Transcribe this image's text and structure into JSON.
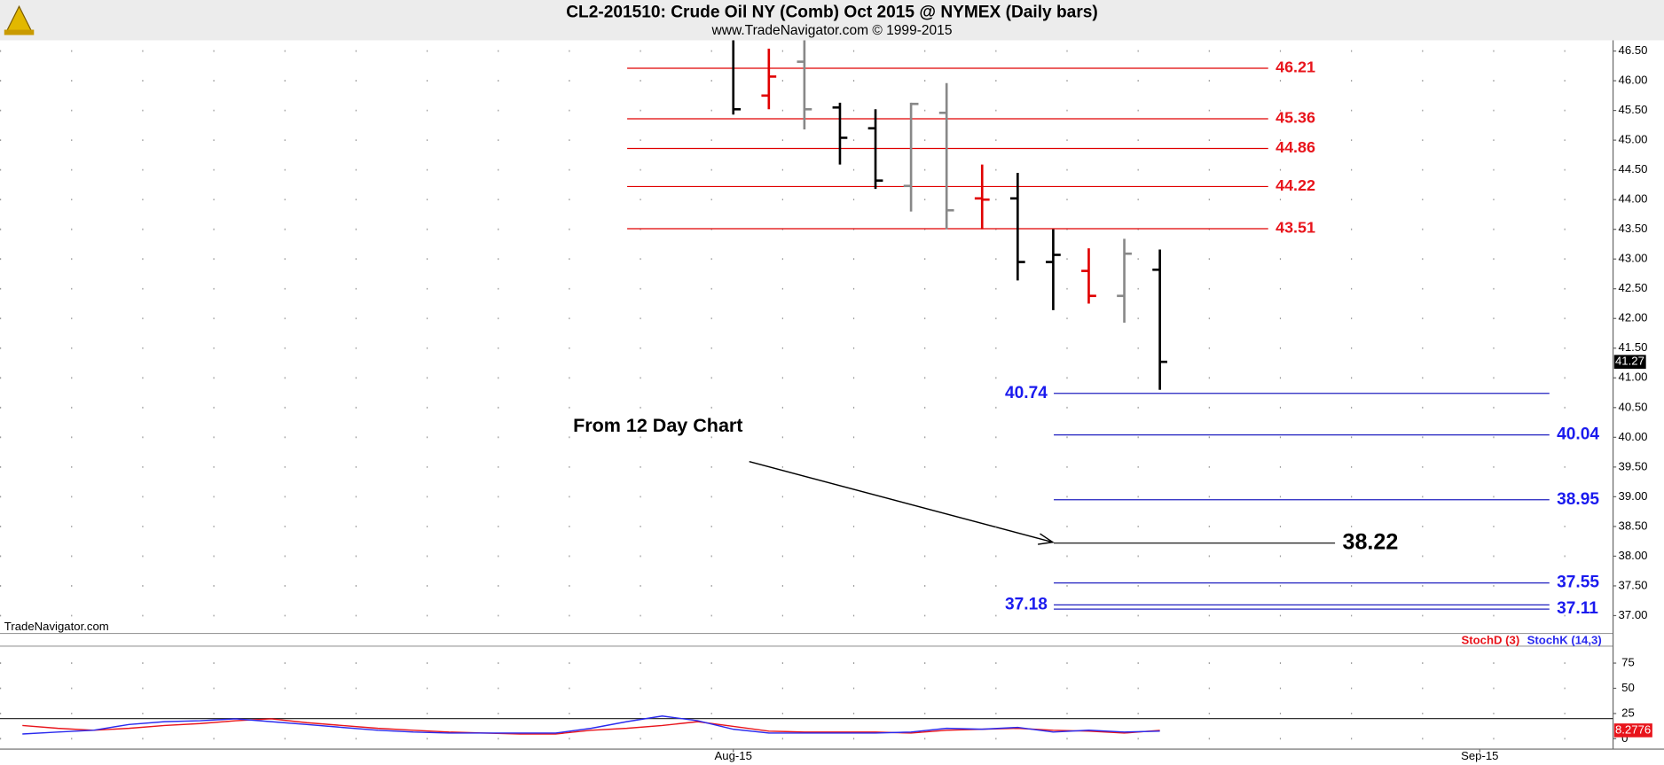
{
  "chart_data": [
    {
      "type": "ohlc",
      "title": "CL2-201510:  Crude Oil NY (Comb) Oct 2015 @ NYMEX  (Daily bars)",
      "subtitle": "www.TradeNavigator.com © 1999-2015",
      "watermark": "TradeNavigator.com",
      "annotation": "From 12 Day Chart",
      "x": [
        0,
        1,
        2,
        3,
        4,
        5,
        6,
        7,
        8,
        9,
        10,
        11,
        12
      ],
      "open": [
        null,
        45.75,
        46.32,
        45.55,
        45.2,
        44.23,
        45.46,
        44.02,
        44.02,
        42.95,
        42.8,
        42.38,
        42.82
      ],
      "high": [
        46.68,
        46.54,
        46.68,
        45.63,
        45.52,
        45.63,
        45.96,
        44.59,
        44.45,
        43.5,
        43.18,
        43.34,
        43.16
      ],
      "low": [
        45.43,
        45.52,
        45.18,
        44.59,
        44.18,
        43.8,
        43.5,
        43.5,
        42.64,
        42.14,
        42.25,
        41.93,
        40.8
      ],
      "close": [
        45.52,
        46.07,
        45.52,
        45.04,
        44.32,
        45.61,
        43.82,
        44.0,
        42.95,
        43.07,
        42.38,
        43.09,
        41.27
      ],
      "colors": [
        "#000000",
        "#e00000",
        "#888888",
        "#000000",
        "#000000",
        "#888888",
        "#888888",
        "#e00000",
        "#000000",
        "#000000",
        "#e00000",
        "#888888",
        "#000000"
      ],
      "levels": [
        {
          "value": 46.21,
          "color": "#e8141b"
        },
        {
          "value": 45.36,
          "color": "#e8141b"
        },
        {
          "value": 44.86,
          "color": "#e8141b"
        },
        {
          "value": 44.22,
          "color": "#e8141b"
        },
        {
          "value": 43.51,
          "color": "#e8141b"
        },
        {
          "value": 40.74,
          "color": "#1a1aee"
        },
        {
          "value": 40.04,
          "color": "#1a1aee"
        },
        {
          "value": 38.95,
          "color": "#1a1aee"
        },
        {
          "value": 37.55,
          "color": "#1a1aee"
        },
        {
          "value": 37.11,
          "color": "#1a1aee"
        },
        {
          "value": 37.18,
          "color": "#1a1aee"
        },
        {
          "value": 38.22,
          "color": "#000000"
        }
      ],
      "xlim": [
        -20.63,
        24.75
      ],
      "xticks": [
        {
          "value": 0,
          "label": "Aug-15"
        },
        {
          "value": 21,
          "label": "Sep-15"
        }
      ],
      "ylim": [
        36.7,
        46.68
      ],
      "yticks": [
        {
          "value": 37,
          "label": "37.00"
        },
        {
          "value": 37.5,
          "label": "37.50"
        },
        {
          "value": 38,
          "label": "38.00"
        },
        {
          "value": 38.5,
          "label": "38.50"
        },
        {
          "value": 39,
          "label": "39.00"
        },
        {
          "value": 39.5,
          "label": "39.50"
        },
        {
          "value": 40,
          "label": "40.00"
        },
        {
          "value": 40.5,
          "label": "40.50"
        },
        {
          "value": 41,
          "label": "41.00"
        },
        {
          "value": 41.5,
          "label": "41.50"
        },
        {
          "value": 42,
          "label": "42.00"
        },
        {
          "value": 42.5,
          "label": "42.50"
        },
        {
          "value": 43,
          "label": "43.00"
        },
        {
          "value": 43.5,
          "label": "43.50"
        },
        {
          "value": 44,
          "label": "44.00"
        },
        {
          "value": 44.5,
          "label": "44.50"
        },
        {
          "value": 45,
          "label": "45.00"
        },
        {
          "value": 45.5,
          "label": "45.50"
        },
        {
          "value": 46,
          "label": "46.00"
        },
        {
          "value": 46.5,
          "label": "46.50"
        }
      ],
      "grid": true
    },
    {
      "type": "line",
      "x": [
        -20,
        -19,
        -18,
        -17,
        -16,
        -15,
        -14,
        -13,
        -12,
        -11,
        -10,
        -9,
        -8,
        -7,
        -6,
        -5,
        -4,
        -3,
        -2,
        -1,
        0,
        1,
        2,
        3,
        4,
        5,
        6,
        7,
        8,
        9,
        10,
        11,
        12
      ],
      "series": [
        {
          "name": "StochD (3)",
          "color": "#e8141b",
          "values": [
            13.1,
            10.3,
            8.4,
            10.3,
            13.1,
            15.0,
            17.8,
            19.7,
            15.9,
            13.1,
            10.3,
            8.4,
            6.6,
            5.6,
            4.7,
            4.7,
            8.4,
            10.3,
            13.1,
            16.9,
            12.2,
            7.5,
            6.6,
            6.6,
            6.6,
            5.6,
            8.4,
            9.4,
            10.3,
            8.4,
            7.5,
            5.6,
            8.2776
          ]
        },
        {
          "name": "StochK (14,3)",
          "color": "#2a2aee",
          "values": [
            4.7,
            6.6,
            8.4,
            14.1,
            16.9,
            17.8,
            19.7,
            16.9,
            14.1,
            11.2,
            8.4,
            6.6,
            5.6,
            5.6,
            5.6,
            5.6,
            10.3,
            16.9,
            22.5,
            17.8,
            9.4,
            5.6,
            5.6,
            5.6,
            5.6,
            6.6,
            10.3,
            9.4,
            11.2,
            6.6,
            8.4,
            6.6,
            7.5
          ]
        }
      ],
      "reference_line": 20,
      "xlim": [
        -20.63,
        24.75
      ],
      "ylim": [
        -10.3,
        91.8
      ],
      "yticks": [
        0,
        25,
        50,
        75
      ],
      "grid": true
    }
  ]
}
